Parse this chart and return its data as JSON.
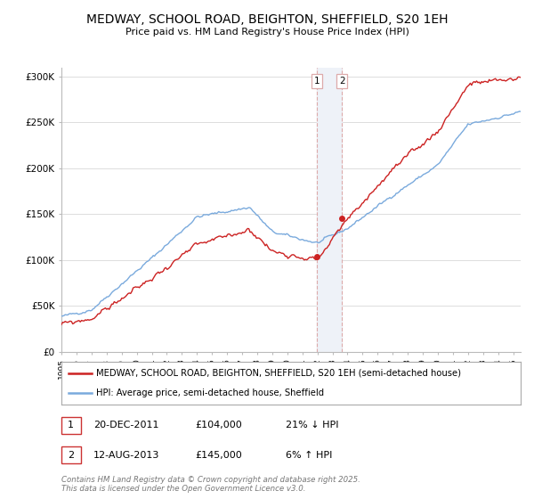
{
  "title": "MEDWAY, SCHOOL ROAD, BEIGHTON, SHEFFIELD, S20 1EH",
  "subtitle": "Price paid vs. HM Land Registry's House Price Index (HPI)",
  "ylabel_ticks": [
    "£0",
    "£50K",
    "£100K",
    "£150K",
    "£200K",
    "£250K",
    "£300K"
  ],
  "ytick_values": [
    0,
    50000,
    100000,
    150000,
    200000,
    250000,
    300000
  ],
  "ylim": [
    0,
    310000
  ],
  "hpi_color": "#7aaadd",
  "price_color": "#cc2222",
  "vline_color": "#ddaaaa",
  "vline_fill": "#eef2f8",
  "legend_label_1": "MEDWAY, SCHOOL ROAD, BEIGHTON, SHEFFIELD, S20 1EH (semi-detached house)",
  "legend_label_2": "HPI: Average price, semi-detached house, Sheffield",
  "annotation_1_date": "20-DEC-2011",
  "annotation_1_price": "£104,000",
  "annotation_1_hpi": "21% ↓ HPI",
  "annotation_2_date": "12-AUG-2013",
  "annotation_2_price": "£145,000",
  "annotation_2_hpi": "6% ↑ HPI",
  "copyright_text": "Contains HM Land Registry data © Crown copyright and database right 2025.\nThis data is licensed under the Open Government Licence v3.0.",
  "bg_color": "#ffffff",
  "grid_color": "#dddddd",
  "sale1_t": 2011.958,
  "sale1_price": 104000,
  "sale2_t": 2013.625,
  "sale2_price": 145000
}
